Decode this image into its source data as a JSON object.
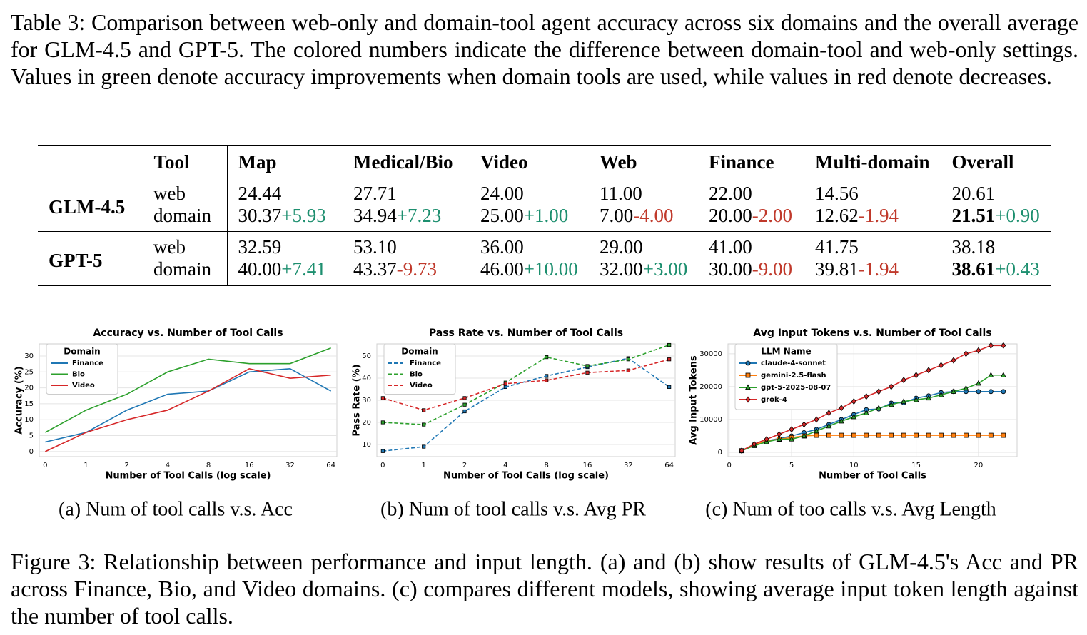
{
  "table_caption": "Table 3: Comparison between web-only and domain-tool agent accuracy across six domains and the overall average for GLM-4.5 and GPT-5. The colored numbers indicate the difference between domain-tool and web-only settings. Values in green denote accuracy improvements when domain tools are used, while values in red denote decreases.",
  "table": {
    "header": [
      "Tool",
      "Map",
      "Medical/Bio",
      "Video",
      "Web",
      "Finance",
      "Multi-domain",
      "Overall"
    ],
    "groups": [
      {
        "model": "GLM-4.5",
        "rows": [
          {
            "tool": "web",
            "cells": [
              "24.44",
              "27.71",
              "24.00",
              "11.00",
              "22.00",
              "14.56",
              "20.61"
            ]
          },
          {
            "tool": "domain",
            "cells": [
              {
                "value": "30.37",
                "delta": "+5.93"
              },
              {
                "value": "34.94",
                "delta": "+7.23"
              },
              {
                "value": "25.00",
                "delta": "+1.00"
              },
              {
                "value": "7.00",
                "delta": "-4.00"
              },
              {
                "value": "20.00",
                "delta": "-2.00"
              },
              {
                "value": "12.62",
                "delta": "-1.94"
              },
              {
                "value": "21.51",
                "delta": "+0.90"
              }
            ]
          }
        ]
      },
      {
        "model": "GPT-5",
        "rows": [
          {
            "tool": "web",
            "cells": [
              "32.59",
              "53.10",
              "36.00",
              "29.00",
              "41.00",
              "41.75",
              "38.18"
            ]
          },
          {
            "tool": "domain",
            "cells": [
              {
                "value": "40.00",
                "delta": "+7.41"
              },
              {
                "value": "43.37",
                "delta": "-9.73"
              },
              {
                "value": "46.00",
                "delta": "+10.00"
              },
              {
                "value": "32.00",
                "delta": "+3.00"
              },
              {
                "value": "30.00",
                "delta": "-9.00"
              },
              {
                "value": "39.81",
                "delta": "-1.94"
              },
              {
                "value": "38.61",
                "delta": "+0.43"
              }
            ]
          }
        ]
      }
    ]
  },
  "chart_data": [
    {
      "type": "line",
      "title": "Accuracy vs. Number of Tool Calls",
      "xlabel": "Number of Tool Calls (log scale)",
      "ylabel": "Accuracy (%)",
      "caption": "(a) Num of tool calls v.s. Acc",
      "categories": [
        "0",
        "1",
        "2",
        "4",
        "8",
        "16",
        "32",
        "64"
      ],
      "ylim": [
        -1.6,
        33.8
      ],
      "yticks": [
        0,
        5,
        10,
        15,
        20,
        25,
        30
      ],
      "grid": true,
      "legend": "upper left",
      "legend_title": "Domain",
      "series": [
        {
          "name": "Finance",
          "color": "#1f77b4",
          "values": [
            3,
            6,
            13,
            18,
            19,
            25,
            26,
            19
          ]
        },
        {
          "name": "Bio",
          "color": "#2ca02c",
          "values": [
            6,
            13,
            18,
            25,
            29,
            27.6,
            27.6,
            32.5
          ]
        },
        {
          "name": "Video",
          "color": "#d62728",
          "values": [
            0,
            6,
            10,
            13,
            19,
            26,
            23,
            24
          ]
        }
      ]
    },
    {
      "type": "line",
      "title": "Pass Rate vs. Number of Tool Calls",
      "xlabel": "Number of Tool Calls (log scale)",
      "ylabel": "Pass Rate (%)",
      "caption": "(b) Num of tool calls v.s. Avg PR",
      "categories": [
        "0",
        "1",
        "2",
        "4",
        "8",
        "16",
        "32",
        "64"
      ],
      "ylim": [
        4.5,
        55.5
      ],
      "yticks": [
        10,
        20,
        30,
        40,
        50
      ],
      "grid": true,
      "legend": "upper left",
      "legend_title": "Domain",
      "series": [
        {
          "name": "Finance",
          "color": "#1f77b4",
          "dashed": true,
          "marker": "s",
          "values": [
            7,
            9,
            25,
            36,
            41,
            45,
            49,
            36
          ]
        },
        {
          "name": "Bio",
          "color": "#2ca02c",
          "dashed": true,
          "marker": "s",
          "values": [
            20,
            19,
            28,
            38,
            49.5,
            45.5,
            48.5,
            55
          ]
        },
        {
          "name": "Video",
          "color": "#d62728",
          "dashed": true,
          "marker": "s",
          "values": [
            31,
            25.5,
            31,
            37.5,
            39,
            42.5,
            43.5,
            48.5
          ]
        }
      ]
    },
    {
      "type": "line",
      "title": "Avg Input Tokens v.s. Number of Tool Calls",
      "xlabel": "Number of Tool Calls",
      "ylabel": "Avg Input Tokens",
      "caption": "(c) Num of too calls v.s. Avg Length",
      "x": [
        1,
        2,
        3,
        4,
        5,
        6,
        7,
        8,
        9,
        10,
        11,
        12,
        13,
        14,
        15,
        16,
        17,
        18,
        19,
        20,
        21,
        22
      ],
      "xlim": [
        -0.1,
        23.1
      ],
      "xticks": [
        0,
        5,
        10,
        15,
        20
      ],
      "ylim": [
        -1300,
        33000
      ],
      "yticks": [
        0,
        10000,
        20000,
        30000
      ],
      "grid": true,
      "legend": "upper left",
      "legend_title": "LLM Name",
      "series": [
        {
          "name": "claude-4-sonnet",
          "color": "#1f77b4",
          "marker": "o",
          "values": [
            500,
            2200,
            3500,
            4200,
            5000,
            6000,
            7000,
            8500,
            10000,
            11500,
            13000,
            13200,
            15000,
            15100,
            16500,
            17200,
            18200,
            18500,
            18500,
            18500,
            18500,
            18500
          ]
        },
        {
          "name": "gemini-2.5-flash",
          "color": "#ff7f0e",
          "marker": "s",
          "values": [
            500,
            2200,
            3500,
            4000,
            4500,
            5000,
            5200,
            5200,
            5200,
            5200,
            5200,
            5200,
            5200,
            5200,
            5200,
            5200,
            5200,
            5200,
            5200,
            5200,
            5200,
            5200
          ]
        },
        {
          "name": "gpt-5-2025-08-07",
          "color": "#2ca02c",
          "marker": "^",
          "values": [
            500,
            2000,
            3200,
            4000,
            4000,
            5000,
            6500,
            8000,
            9500,
            10800,
            12000,
            13500,
            14500,
            15500,
            16000,
            16500,
            17500,
            18500,
            19500,
            21000,
            23500,
            23500
          ]
        },
        {
          "name": "grok-4",
          "color": "#d62728",
          "marker": "D",
          "values": [
            500,
            2500,
            4000,
            5500,
            7000,
            8500,
            10000,
            12000,
            13500,
            15500,
            17000,
            18500,
            20000,
            22000,
            23500,
            25000,
            26500,
            28000,
            30000,
            31000,
            32500,
            32500
          ]
        }
      ]
    }
  ],
  "figure_caption": "Figure 3: Relationship between performance and input length. (a) and (b) show results of GLM-4.5's Acc and PR across Finance, Bio, and Video domains. (c) compares different models, showing average input token length against the number of tool calls."
}
